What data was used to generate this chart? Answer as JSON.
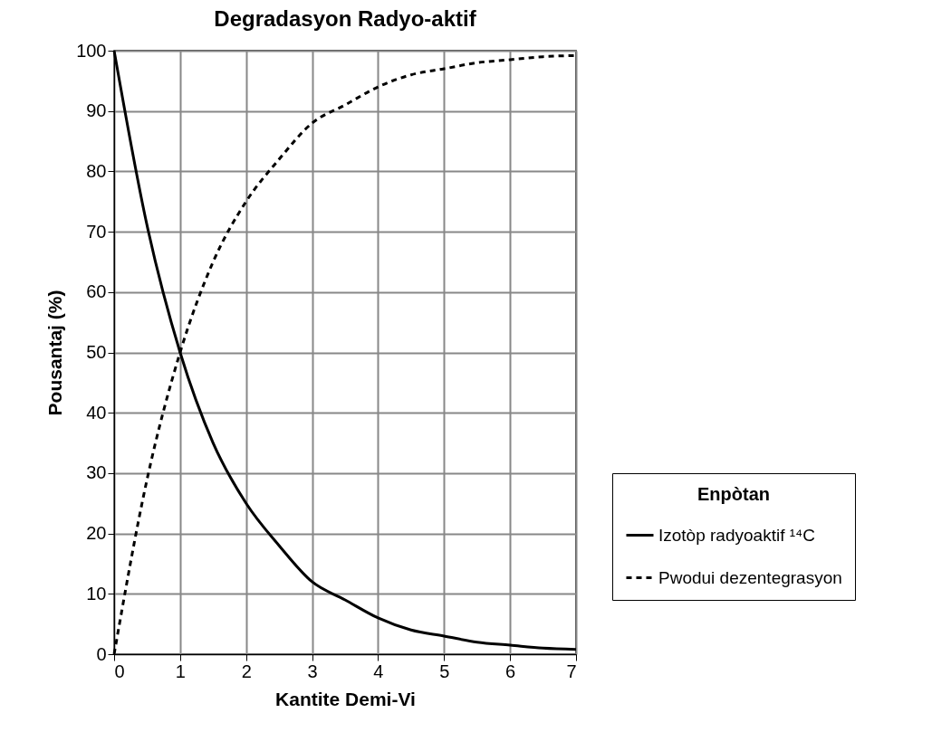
{
  "chart_data": {
    "type": "line",
    "title": "Degradasyon Radyo-aktif",
    "xlabel": "Kantite Demi-Vi",
    "ylabel": "Pousantaj (%)",
    "legend_title": "Enpòtan",
    "x": [
      0,
      0.5,
      1,
      1.5,
      2,
      2.5,
      3,
      3.5,
      4,
      4.5,
      5,
      5.5,
      6,
      6.5,
      7
    ],
    "series": [
      {
        "name": "Izotòp radyoaktif ¹⁴C",
        "color": "#000000",
        "line_style": "solid",
        "values": [
          100,
          71,
          50,
          35,
          25,
          18,
          12,
          9,
          6,
          4,
          3,
          2,
          1.5,
          1,
          0.8
        ]
      },
      {
        "name": "Pwodui dezentegrasyon",
        "color": "#000000",
        "line_style": "dashed",
        "values": [
          0,
          29,
          50,
          65,
          75,
          82,
          88,
          91,
          94,
          96,
          97,
          98,
          98.5,
          99,
          99.2
        ]
      }
    ],
    "xlim": [
      0,
      7
    ],
    "xticks": [
      0,
      1,
      2,
      3,
      4,
      5,
      6,
      7
    ],
    "ylim": [
      0,
      100
    ],
    "yticks": [
      0,
      10,
      20,
      30,
      40,
      50,
      60,
      70,
      80,
      90,
      100
    ],
    "grid": true,
    "legend": "bottom right",
    "marker": "none"
  }
}
